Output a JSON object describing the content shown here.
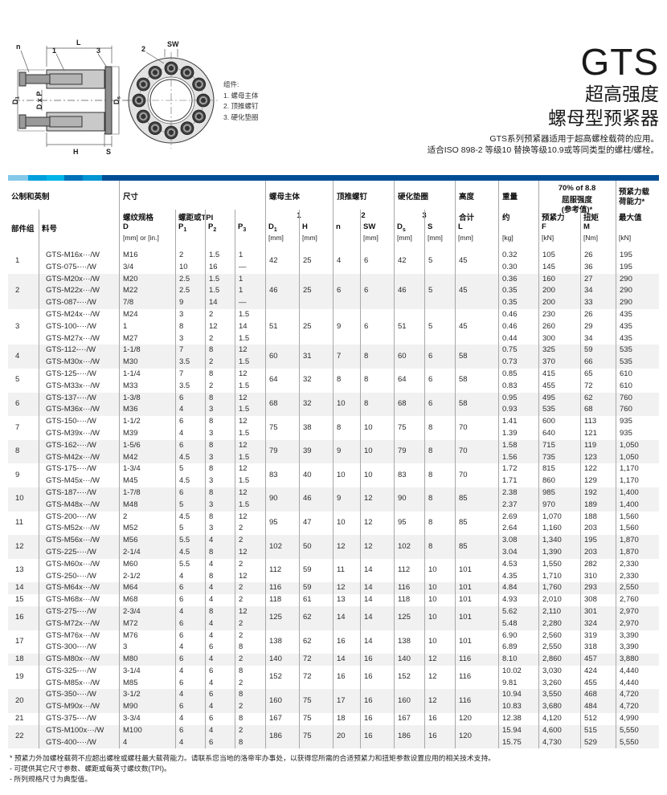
{
  "header_block": {
    "product": "GTS",
    "subtitle1": "超高强度",
    "subtitle2": "螺母型预紧器",
    "desc1": "GTS系列预紧器适用于超高螺栓载荷的应用。",
    "desc2": "适合ISO 898-2 等级10 替换等级10.9或等同类型的螺柱/螺栓。"
  },
  "drawing": {
    "labels": {
      "n": "n",
      "L": "L",
      "one": "1",
      "three": "3",
      "two": "2",
      "sw": "SW",
      "d1b": "D",
      "d1s": "1",
      "dxp": "D x P",
      "dsb": "D",
      "dss": "s",
      "h": "H",
      "s": "S"
    },
    "legend": {
      "title": "组件:",
      "items": [
        "1.  螺母主体",
        "2.  顶推螺钉",
        "3.  硬化垫圈"
      ]
    }
  },
  "table": {
    "band_colors": [
      "#85c8e9",
      "#00a0dc",
      "#00b4e8",
      "#0072b9",
      "#0095d3",
      "#004e95"
    ],
    "head": {
      "metric_inch": "公制和英制",
      "dims": "尺寸",
      "nut_body": "螺母主体",
      "jacking_bolts": "顶推螺钉",
      "hardened_washer": "硬化垫圈",
      "height": "高度",
      "weight": "重量",
      "ref_line1": "70% of 8.8",
      "ref_line2": "屈服强度",
      "ref_line3": "(参考值)*",
      "cap_line1": "预紧力载",
      "cap_line2": "荷能力*",
      "thread_size": "螺纹规格",
      "pitch_tpi": "螺距或TPI",
      "num1": "1",
      "num2": "2",
      "num3": "3",
      "total": "合计",
      "approx": "约",
      "preload": "预紧力",
      "torque": "扭矩",
      "max": "最大值",
      "sym": {
        "group": "部件组",
        "part": "料号",
        "D": "D",
        "P1": {
          "b": "P",
          "s": "1"
        },
        "P2": {
          "b": "P",
          "s": "2"
        },
        "P3": {
          "b": "P",
          "s": "3"
        },
        "D1": {
          "b": "D",
          "s": "1"
        },
        "H": "H",
        "n": "n",
        "SW": "SW",
        "Ds": {
          "b": "D",
          "s": "s"
        },
        "S": "S",
        "L": "L",
        "F": "F",
        "M": "M"
      },
      "units": {
        "mm_or_in": "[mm] or [in.]",
        "mm": "[mm]",
        "kg": "[kg]",
        "kN": "[kN]",
        "Nm": "[Nm]"
      }
    },
    "groups": [
      {
        "no": "1",
        "dims": [
          "42",
          "25",
          "4",
          "6",
          "42",
          "5",
          "45"
        ],
        "rows": [
          [
            "GTS-M16x···/W",
            "M16",
            "2",
            "1.5",
            "1",
            "0.32",
            "105",
            "26",
            "195"
          ],
          [
            "GTS-075-···/W",
            "3/4",
            "10",
            "16",
            "—",
            "0.30",
            "145",
            "36",
            "195"
          ]
        ]
      },
      {
        "no": "2",
        "dims": [
          "46",
          "25",
          "6",
          "6",
          "46",
          "5",
          "45"
        ],
        "rows": [
          [
            "GTS-M20x···/W",
            "M20",
            "2.5",
            "1.5",
            "1",
            "0.36",
            "160",
            "27",
            "290"
          ],
          [
            "GTS-M22x···/W",
            "M22",
            "2.5",
            "1.5",
            "1",
            "0.35",
            "200",
            "34",
            "290"
          ],
          [
            "GTS-087-···/W",
            "7/8",
            "9",
            "14",
            "—",
            "0.35",
            "200",
            "33",
            "290"
          ]
        ]
      },
      {
        "no": "3",
        "dims": [
          "51",
          "25",
          "9",
          "6",
          "51",
          "5",
          "45"
        ],
        "rows": [
          [
            "GTS-M24x···/W",
            "M24",
            "3",
            "2",
            "1.5",
            "0.46",
            "230",
            "26",
            "435"
          ],
          [
            "GTS-100-···/W",
            "1",
            "8",
            "12",
            "14",
            "0.46",
            "260",
            "29",
            "435"
          ],
          [
            "GTS-M27x···/W",
            "M27",
            "3",
            "2",
            "1.5",
            "0.44",
            "300",
            "34",
            "435"
          ]
        ]
      },
      {
        "no": "4",
        "dims": [
          "60",
          "31",
          "7",
          "8",
          "60",
          "6",
          "58"
        ],
        "rows": [
          [
            "GTS-112-···/W",
            "1-1/8",
            "7",
            "8",
            "12",
            "0.75",
            "325",
            "59",
            "535"
          ],
          [
            "GTS-M30x···/W",
            "M30",
            "3.5",
            "2",
            "1.5",
            "0.73",
            "370",
            "66",
            "535"
          ]
        ]
      },
      {
        "no": "5",
        "dims": [
          "64",
          "32",
          "8",
          "8",
          "64",
          "6",
          "58"
        ],
        "rows": [
          [
            "GTS-125-···/W",
            "1-1/4",
            "7",
            "8",
            "12",
            "0.85",
            "415",
            "65",
            "610"
          ],
          [
            "GTS-M33x···/W",
            "M33",
            "3.5",
            "2",
            "1.5",
            "0.83",
            "455",
            "72",
            "610"
          ]
        ]
      },
      {
        "no": "6",
        "dims": [
          "68",
          "32",
          "10",
          "8",
          "68",
          "6",
          "58"
        ],
        "rows": [
          [
            "GTS-137-···/W",
            "1-3/8",
            "6",
            "8",
            "12",
            "0.95",
            "495",
            "62",
            "760"
          ],
          [
            "GTS-M36x···/W",
            "M36",
            "4",
            "3",
            "1.5",
            "0.93",
            "535",
            "68",
            "760"
          ]
        ]
      },
      {
        "no": "7",
        "dims": [
          "75",
          "38",
          "8",
          "10",
          "75",
          "8",
          "70"
        ],
        "rows": [
          [
            "GTS-150-···/W",
            "1-1/2",
            "6",
            "8",
            "12",
            "1.41",
            "600",
            "113",
            "935"
          ],
          [
            "GTS-M39x···/W",
            "M39",
            "4",
            "3",
            "1.5",
            "1.39",
            "640",
            "121",
            "935"
          ]
        ]
      },
      {
        "no": "8",
        "dims": [
          "79",
          "39",
          "9",
          "10",
          "79",
          "8",
          "70"
        ],
        "rows": [
          [
            "GTS-162-···/W",
            "1-5/6",
            "6",
            "8",
            "12",
            "1.58",
            "715",
            "119",
            "1,050"
          ],
          [
            "GTS-M42x···/W",
            "M42",
            "4.5",
            "3",
            "1.5",
            "1.56",
            "735",
            "123",
            "1,050"
          ]
        ]
      },
      {
        "no": "9",
        "dims": [
          "83",
          "40",
          "10",
          "10",
          "83",
          "8",
          "70"
        ],
        "rows": [
          [
            "GTS-175-···/W",
            "1-3/4",
            "5",
            "8",
            "12",
            "1.72",
            "815",
            "122",
            "1,170"
          ],
          [
            "GTS-M45x···/W",
            "M45",
            "4.5",
            "3",
            "1.5",
            "1.71",
            "860",
            "129",
            "1,170"
          ]
        ]
      },
      {
        "no": "10",
        "dims": [
          "90",
          "46",
          "9",
          "12",
          "90",
          "8",
          "85"
        ],
        "rows": [
          [
            "GTS-187-···/W",
            "1-7/8",
            "6",
            "8",
            "12",
            "2.38",
            "985",
            "192",
            "1,400"
          ],
          [
            "GTS-M48x···/W",
            "M48",
            "5",
            "3",
            "1.5",
            "2.37",
            "970",
            "189",
            "1,400"
          ]
        ]
      },
      {
        "no": "11",
        "dims": [
          "95",
          "47",
          "10",
          "12",
          "95",
          "8",
          "85"
        ],
        "rows": [
          [
            "GTS-200-···/W",
            "2",
            "4.5",
            "8",
            "12",
            "2.69",
            "1,070",
            "188",
            "1,560"
          ],
          [
            "GTS-M52x···/W",
            "M52",
            "5",
            "3",
            "2",
            "2.64",
            "1,160",
            "203",
            "1,560"
          ]
        ]
      },
      {
        "no": "12",
        "dims": [
          "102",
          "50",
          "12",
          "12",
          "102",
          "8",
          "85"
        ],
        "rows": [
          [
            "GTS-M56x···/W",
            "M56",
            "5.5",
            "4",
            "2",
            "3.08",
            "1,340",
            "195",
            "1,870"
          ],
          [
            "GTS-225-···/W",
            "2-1/4",
            "4.5",
            "8",
            "12",
            "3.04",
            "1,390",
            "203",
            "1,870"
          ]
        ]
      },
      {
        "no": "13",
        "dims": [
          "112",
          "59",
          "11",
          "14",
          "112",
          "10",
          "101"
        ],
        "rows": [
          [
            "GTS-M60x···/W",
            "M60",
            "5.5",
            "4",
            "2",
            "4.53",
            "1,550",
            "282",
            "2,330"
          ],
          [
            "GTS-250-···/W",
            "2-1/2",
            "4",
            "8",
            "12",
            "4.35",
            "1,710",
            "310",
            "2,330"
          ]
        ]
      },
      {
        "no": "14",
        "dims": [
          "116",
          "59",
          "12",
          "14",
          "116",
          "10",
          "101"
        ],
        "rows": [
          [
            "GTS-M64x···/W",
            "M64",
            "6",
            "4",
            "2",
            "4.84",
            "1,760",
            "293",
            "2,550"
          ]
        ]
      },
      {
        "no": "15",
        "dims": [
          "118",
          "61",
          "13",
          "14",
          "118",
          "10",
          "101"
        ],
        "rows": [
          [
            "GTS-M68x···/W",
            "M68",
            "6",
            "4",
            "2",
            "4.93",
            "2,010",
            "308",
            "2,760"
          ]
        ]
      },
      {
        "no": "16",
        "dims": [
          "125",
          "62",
          "14",
          "14",
          "125",
          "10",
          "101"
        ],
        "rows": [
          [
            "GTS-275-···/W",
            "2-3/4",
            "4",
            "8",
            "12",
            "5.62",
            "2,110",
            "301",
            "2,970"
          ],
          [
            "GTS-M72x···/W",
            "M72",
            "6",
            "4",
            "2",
            "5.48",
            "2,280",
            "324",
            "2,970"
          ]
        ]
      },
      {
        "no": "17",
        "dims": [
          "138",
          "62",
          "16",
          "14",
          "138",
          "10",
          "101"
        ],
        "rows": [
          [
            "GTS-M76x···/W",
            "M76",
            "6",
            "4",
            "2",
            "6.90",
            "2,560",
            "319",
            "3,390"
          ],
          [
            "GTS-300-···/W",
            "3",
            "4",
            "6",
            "8",
            "6.89",
            "2,550",
            "318",
            "3,390"
          ]
        ]
      },
      {
        "no": "18",
        "dims": [
          "140",
          "72",
          "14",
          "16",
          "140",
          "12",
          "116"
        ],
        "rows": [
          [
            "GTS-M80x···/W",
            "M80",
            "6",
            "4",
            "2",
            "8.10",
            "2,860",
            "457",
            "3,880"
          ]
        ]
      },
      {
        "no": "19",
        "dims": [
          "152",
          "72",
          "16",
          "16",
          "152",
          "12",
          "116"
        ],
        "rows": [
          [
            "GTS-325-···/W",
            "3-1/4",
            "4",
            "6",
            "8",
            "10.02",
            "3,030",
            "424",
            "4,440"
          ],
          [
            "GTS-M85x···/W",
            "M85",
            "6",
            "4",
            "2",
            "9.81",
            "3,260",
            "455",
            "4,440"
          ]
        ]
      },
      {
        "no": "20",
        "dims": [
          "160",
          "75",
          "17",
          "16",
          "160",
          "12",
          "116"
        ],
        "rows": [
          [
            "GTS-350-···/W",
            "3-1/2",
            "4",
            "6",
            "8",
            "10.94",
            "3,550",
            "468",
            "4,720"
          ],
          [
            "GTS-M90x···/W",
            "M90",
            "6",
            "4",
            "2",
            "10.83",
            "3,680",
            "484",
            "4,720"
          ]
        ]
      },
      {
        "no": "21",
        "dims": [
          "167",
          "75",
          "18",
          "16",
          "167",
          "16",
          "120"
        ],
        "rows": [
          [
            "GTS-375-···/W",
            "3-3/4",
            "4",
            "6",
            "8",
            "12.38",
            "4,120",
            "512",
            "4,990"
          ]
        ]
      },
      {
        "no": "22",
        "dims": [
          "186",
          "75",
          "20",
          "16",
          "186",
          "16",
          "120"
        ],
        "rows": [
          [
            "GTS-M100x···/W",
            "M100",
            "6",
            "4",
            "2",
            "15.94",
            "4,600",
            "515",
            "5,550"
          ],
          [
            "GTS-400-···/W",
            "4",
            "4",
            "6",
            "8",
            "15.75",
            "4,730",
            "529",
            "5,550"
          ]
        ]
      }
    ]
  },
  "footnotes": [
    "* 预紧力外加螺栓载荷不应超出螺栓或螺柱最大载荷能力。请联系您当地的洛帝牢办事处，以获得您所需的合适预紧力和扭矩参数设置应用的相关技术支持。",
    "- 可提供其它尺寸参数、螺距或每英寸螺纹数(TPI)。",
    "- 所列规格尺寸为典型值。"
  ]
}
